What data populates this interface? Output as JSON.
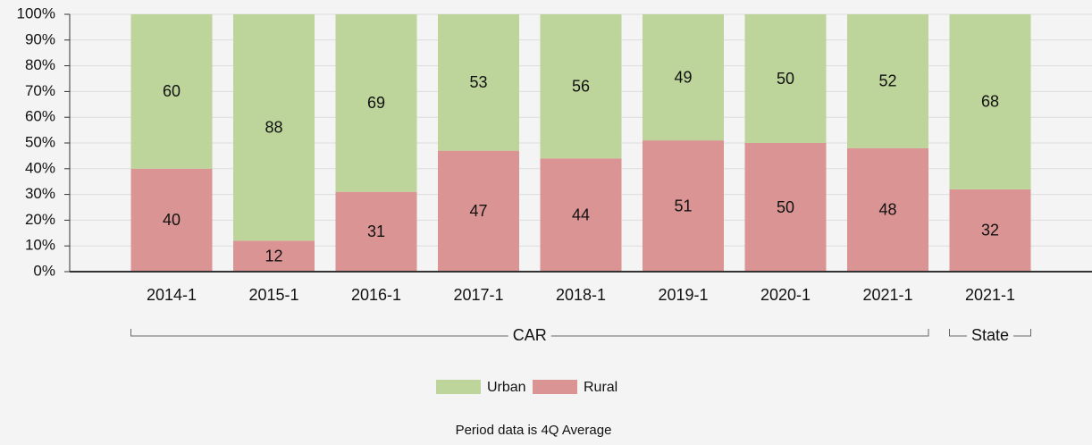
{
  "chart_data": {
    "type": "stacked_bar",
    "categories": [
      "2014-1",
      "2015-1",
      "2016-1",
      "2017-1",
      "2018-1",
      "2019-1",
      "2020-1",
      "2021-1",
      "2021-1"
    ],
    "series": [
      {
        "name": "Urban",
        "color": "#bdd59a",
        "values": [
          60,
          88,
          69,
          53,
          56,
          49,
          50,
          52,
          68
        ]
      },
      {
        "name": "Rural",
        "color": "#da9494",
        "values": [
          40,
          12,
          31,
          47,
          44,
          51,
          50,
          48,
          32
        ]
      }
    ],
    "groups": [
      {
        "label": "CAR",
        "span": 8
      },
      {
        "label": "State",
        "span": 1
      }
    ],
    "ylim": [
      0,
      100
    ],
    "yticks": [
      {
        "value": 0,
        "label": "0%"
      },
      {
        "value": 10,
        "label": "10%"
      },
      {
        "value": 20,
        "label": "20%"
      },
      {
        "value": 30,
        "label": "30%"
      },
      {
        "value": 40,
        "label": "40%"
      },
      {
        "value": 50,
        "label": "50%"
      },
      {
        "value": 60,
        "label": "60%"
      },
      {
        "value": 70,
        "label": "70%"
      },
      {
        "value": 80,
        "label": "80%"
      },
      {
        "value": 90,
        "label": "90%"
      },
      {
        "value": 100,
        "label": "100%"
      }
    ],
    "grid": true,
    "footnote": "Period data is 4Q Average"
  }
}
